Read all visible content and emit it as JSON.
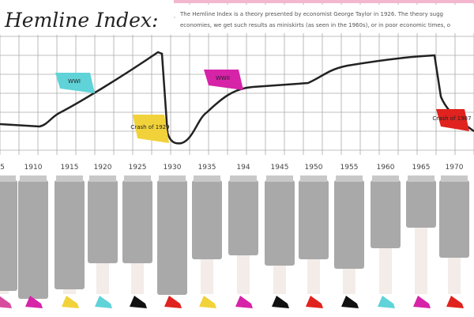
{
  "header": {
    "title": "Hemline Index:",
    "description": [
      "The Hemline Index is a theory presented by economist George Taylor in 1926. The theory sugg",
      "economies, we get such results as miniskirts (as seen in the 1960s), or in poor economic times, o"
    ]
  },
  "events": [
    {
      "label": "WWI",
      "color": "#5fd3d8"
    },
    {
      "label": "Crash of 1929",
      "color": "#f2d23a"
    },
    {
      "label": "WWII",
      "color": "#d623a8"
    },
    {
      "label": "Crash of 1987",
      "color": "#e0231e"
    }
  ],
  "years": [
    "5",
    "1910",
    "1915",
    "1920",
    "1925",
    "1930",
    "1935",
    "194",
    "1945",
    "1950",
    "1955",
    "1960",
    "1965",
    "1970"
  ]
}
